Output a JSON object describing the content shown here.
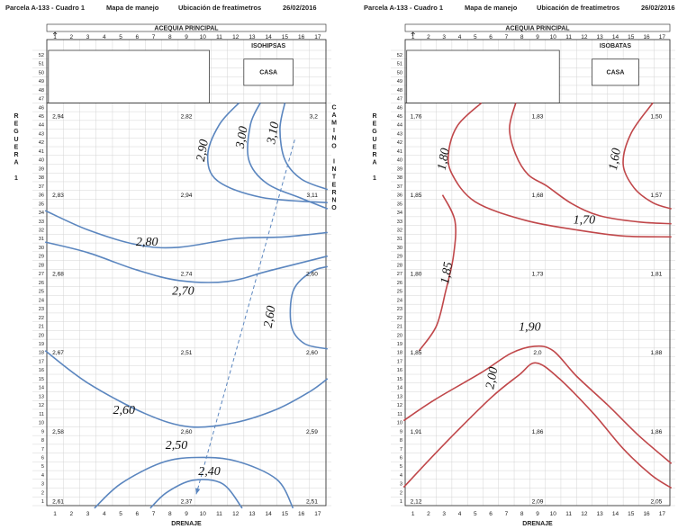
{
  "header": {
    "parcel": "Parcela A-133 - Cuadro 1",
    "map_title": "Mapa de manejo",
    "subtitle": "Ubicación de freatímetros",
    "date": "26/02/2016"
  },
  "top_label": "ACEQUIA PRINCIPAL",
  "bottom_label": "DRENAJE",
  "columns": [
    "1",
    "2",
    "3",
    "4",
    "5",
    "6",
    "7",
    "8",
    "9",
    "10",
    "11",
    "12",
    "13",
    "14",
    "15",
    "16",
    "17"
  ],
  "rows": [
    "52",
    "51",
    "50",
    "49",
    "48",
    "47",
    "46",
    "45",
    "44",
    "43",
    "42",
    "41",
    "40",
    "39",
    "38",
    "37",
    "36",
    "35",
    "34",
    "33",
    "32",
    "31",
    "30",
    "29",
    "28",
    "27",
    "26",
    "25",
    "24",
    "23",
    "22",
    "21",
    "20",
    "19",
    "18",
    "17",
    "16",
    "15",
    "14",
    "13",
    "12",
    "11",
    "10",
    "9",
    "8",
    "7",
    "6",
    "5",
    "4",
    "3",
    "2",
    "1"
  ],
  "house_label": "CASA",
  "left_side_letters": [
    "R",
    "E",
    "G",
    "U",
    "E",
    "R",
    "A",
    "",
    "1"
  ],
  "right_side_letters": [
    "C",
    "A",
    "M",
    "I",
    "N",
    "O",
    "",
    "I",
    "N",
    "T",
    "E",
    "R",
    "N",
    "O"
  ],
  "panels": [
    {
      "id": "isohipsas",
      "title": "ISOHIPSAS",
      "line_color": "#5b86bf",
      "points": [
        {
          "label": "2,94",
          "col": 1,
          "row": 45
        },
        {
          "label": "2,82",
          "col": 9,
          "row": 45
        },
        {
          "label": "3,2",
          "col": 17,
          "row": 45
        },
        {
          "label": "2,83",
          "col": 1,
          "row": 36
        },
        {
          "label": "2,94",
          "col": 9,
          "row": 36
        },
        {
          "label": "3,11",
          "col": 17,
          "row": 36
        },
        {
          "label": "2,68",
          "col": 1,
          "row": 27
        },
        {
          "label": "2,74",
          "col": 9,
          "row": 27
        },
        {
          "label": "2,60",
          "col": 17,
          "row": 27
        },
        {
          "label": "2,67",
          "col": 1,
          "row": 18
        },
        {
          "label": "2,51",
          "col": 9,
          "row": 18
        },
        {
          "label": "2,60",
          "col": 17,
          "row": 18
        },
        {
          "label": "2,58",
          "col": 1,
          "row": 9
        },
        {
          "label": "2,60",
          "col": 9,
          "row": 9
        },
        {
          "label": "2,59",
          "col": 17,
          "row": 9
        },
        {
          "label": "2,61",
          "col": 1,
          "row": 1
        },
        {
          "label": "2,37",
          "col": 9,
          "row": 1
        },
        {
          "label": "2,51",
          "col": 17,
          "row": 1
        }
      ],
      "contour_labels": [
        {
          "label": "2,90",
          "col": 10.2,
          "row": 41,
          "rot": -80
        },
        {
          "label": "3,00",
          "col": 12.6,
          "row": 42.5,
          "rot": -80
        },
        {
          "label": "3,10",
          "col": 14.5,
          "row": 43,
          "rot": -80
        },
        {
          "label": "2,80",
          "col": 6.6,
          "row": 30.2,
          "rot": 0
        },
        {
          "label": "2,70",
          "col": 8.8,
          "row": 24.6,
          "rot": 0
        },
        {
          "label": "2,60",
          "col": 14.3,
          "row": 22,
          "rot": -80
        },
        {
          "label": "2,60",
          "col": 5.2,
          "row": 11,
          "rot": 0
        },
        {
          "label": "2,50",
          "col": 8.4,
          "row": 7,
          "rot": 0
        },
        {
          "label": "2,40",
          "col": 10.4,
          "row": 4,
          "rot": 0
        }
      ]
    },
    {
      "id": "isobatas",
      "title": "ISOBATAS",
      "line_color": "#c0474a",
      "points": [
        {
          "label": "1,76",
          "col": 1,
          "row": 45
        },
        {
          "label": "1,83",
          "col": 9,
          "row": 45
        },
        {
          "label": "1,50",
          "col": 17,
          "row": 45
        },
        {
          "label": "1,85",
          "col": 1,
          "row": 36
        },
        {
          "label": "1,68",
          "col": 9,
          "row": 36
        },
        {
          "label": "1,57",
          "col": 17,
          "row": 36
        },
        {
          "label": "1,80",
          "col": 1,
          "row": 27
        },
        {
          "label": "1,73",
          "col": 9,
          "row": 27
        },
        {
          "label": "1,81",
          "col": 17,
          "row": 27
        },
        {
          "label": "1,85",
          "col": 1,
          "row": 18
        },
        {
          "label": "2,0",
          "col": 9,
          "row": 18
        },
        {
          "label": "1,88",
          "col": 17,
          "row": 18
        },
        {
          "label": "1,91",
          "col": 1,
          "row": 9
        },
        {
          "label": "1,86",
          "col": 9,
          "row": 9
        },
        {
          "label": "1,86",
          "col": 17,
          "row": 9
        },
        {
          "label": "2,12",
          "col": 1,
          "row": 1
        },
        {
          "label": "2,09",
          "col": 9,
          "row": 1
        },
        {
          "label": "2,05",
          "col": 17,
          "row": 1
        }
      ],
      "contour_labels": [
        {
          "label": "1,80",
          "col": 3.2,
          "row": 40,
          "rot": -80
        },
        {
          "label": "1,60",
          "col": 14.2,
          "row": 40,
          "rot": -80
        },
        {
          "label": "1,70",
          "col": 12,
          "row": 32.7,
          "rot": 0
        },
        {
          "label": "1,85",
          "col": 3.4,
          "row": 27,
          "rot": -80
        },
        {
          "label": "1,90",
          "col": 8.5,
          "row": 20.5,
          "rot": 0
        },
        {
          "label": "2,00",
          "col": 6.3,
          "row": 15,
          "rot": -80
        }
      ]
    }
  ]
}
